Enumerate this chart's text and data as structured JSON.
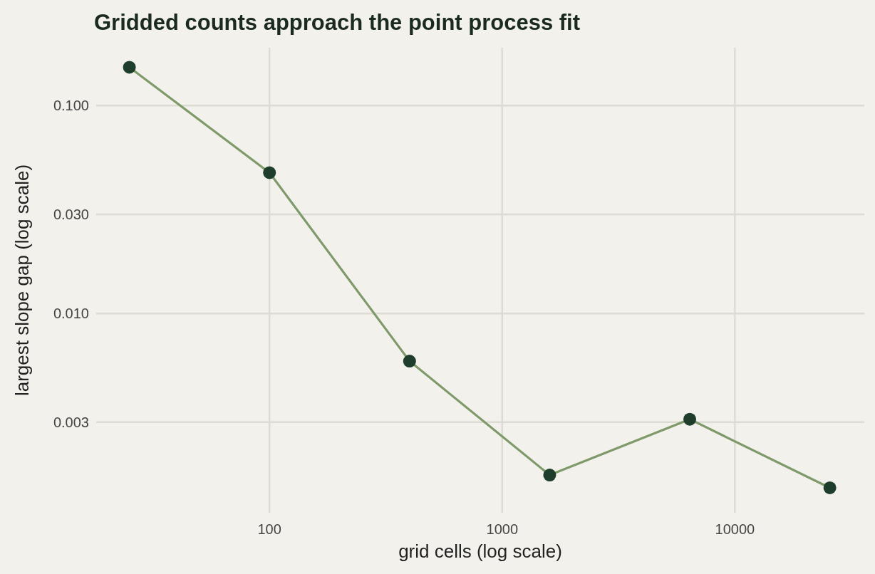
{
  "chart_data": {
    "type": "line",
    "title": "Gridded counts approach the point process fit",
    "xlabel": "grid cells (log scale)",
    "ylabel": "largest slope gap (log scale)",
    "x": [
      25,
      100,
      400,
      1600,
      6400,
      25600
    ],
    "series": [
      {
        "color": "#7f9a6a",
        "values": [
          0.153,
          0.0476,
          0.0059,
          0.00167,
          0.0031,
          0.00145
        ]
      }
    ],
    "marker": "circle",
    "log": "xy",
    "grid": true,
    "xlim": [
      18,
      36000
    ],
    "ylim": [
      0.0011,
      0.19
    ],
    "xticks": [
      100,
      1000,
      10000
    ],
    "yticks": [
      {
        "value": 0.1,
        "label": "0.100"
      },
      {
        "value": 0.03,
        "label": "0.030"
      },
      {
        "value": 0.01,
        "label": "0.010"
      },
      {
        "value": 0.003,
        "label": "0.003"
      }
    ]
  }
}
